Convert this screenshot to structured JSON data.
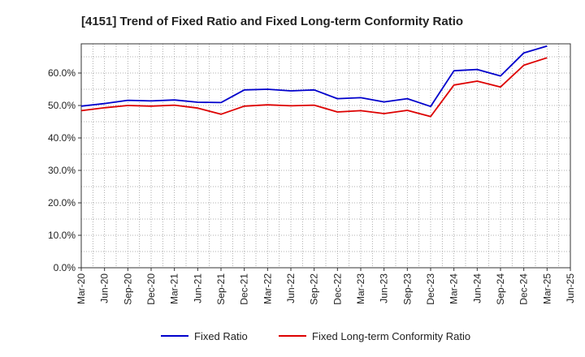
{
  "chart_data": {
    "type": "line",
    "title": "[4151]  Trend of Fixed Ratio and Fixed Long-term Conformity Ratio",
    "xlabel": "",
    "ylabel": "",
    "x": [
      "Mar-20",
      "Jun-20",
      "Sep-20",
      "Dec-20",
      "Mar-21",
      "Jun-21",
      "Sep-21",
      "Dec-21",
      "Mar-22",
      "Jun-22",
      "Sep-22",
      "Dec-22",
      "Mar-23",
      "Jun-23",
      "Sep-23",
      "Dec-23",
      "Mar-24",
      "Jun-24",
      "Sep-24",
      "Dec-24",
      "Mar-25",
      "Jun-25"
    ],
    "y_ticks": [
      0,
      10,
      20,
      30,
      40,
      50,
      60
    ],
    "y_tick_labels": [
      "0.0%",
      "10.0%",
      "20.0%",
      "30.0%",
      "40.0%",
      "50.0%",
      "60.0%"
    ],
    "ylim": [
      0,
      69
    ],
    "grid": true,
    "legend_position": "bottom",
    "series": [
      {
        "name": "Fixed Ratio",
        "color": "#0000cc",
        "values": [
          49.8,
          50.6,
          51.6,
          51.4,
          51.7,
          51.0,
          50.9,
          54.8,
          55.0,
          54.5,
          54.8,
          52.1,
          52.4,
          51.1,
          52.1,
          49.7,
          60.7,
          61.1,
          59.1,
          66.2,
          68.3,
          null
        ]
      },
      {
        "name": "Fixed Long-term Conformity Ratio",
        "color": "#dd0000",
        "values": [
          48.4,
          49.3,
          50.0,
          49.8,
          50.1,
          49.2,
          47.3,
          49.8,
          50.2,
          49.9,
          50.1,
          48.0,
          48.4,
          47.5,
          48.5,
          46.6,
          56.3,
          57.5,
          55.7,
          62.4,
          64.7,
          null
        ]
      }
    ]
  }
}
